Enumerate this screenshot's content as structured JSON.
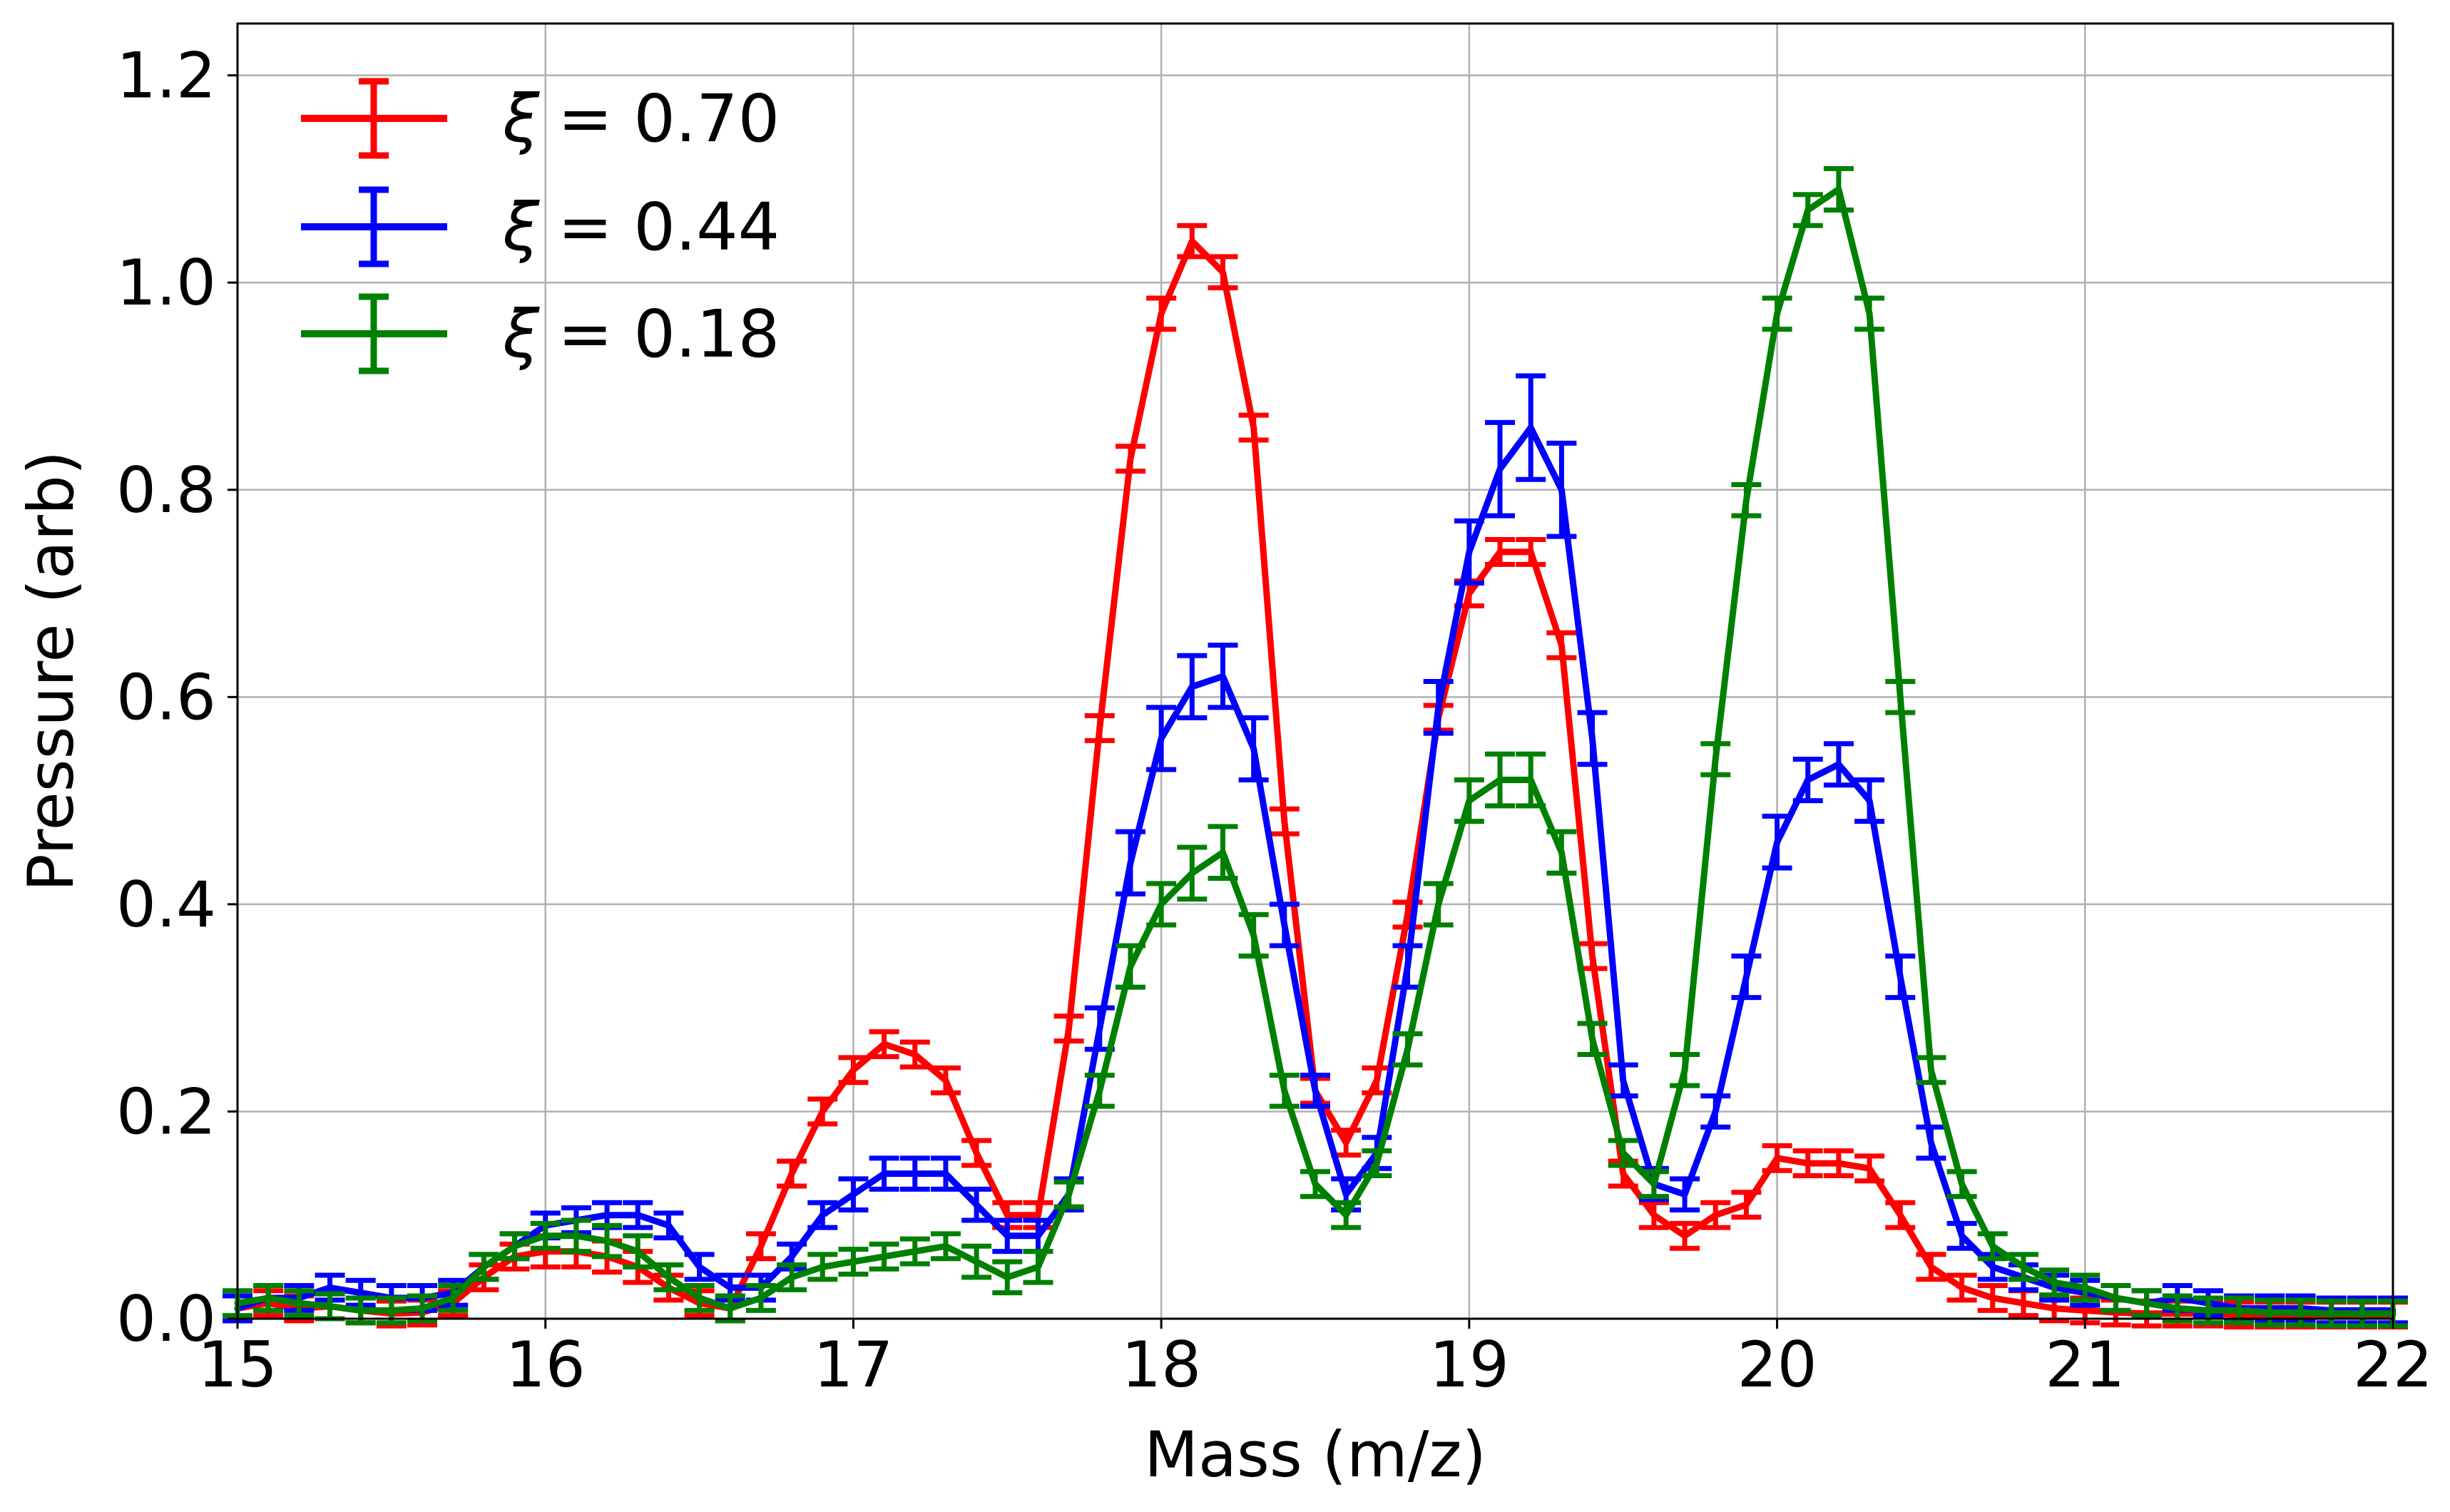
{
  "chart_data": {
    "type": "line",
    "title": "",
    "xlabel": "Mass (m/z)",
    "ylabel": "Pressure (arb)",
    "xlim": [
      15,
      22
    ],
    "ylim": [
      0,
      1.25
    ],
    "xticks": [
      15,
      16,
      17,
      18,
      19,
      20,
      21,
      22
    ],
    "xtick_labels": [
      "15",
      "16",
      "17",
      "18",
      "19",
      "20",
      "21",
      "22"
    ],
    "yticks": [
      0,
      0.2,
      0.4,
      0.6,
      0.8,
      1.0,
      1.2
    ],
    "ytick_labels": [
      "0.0",
      "0.2",
      "0.4",
      "0.6",
      "0.8",
      "1.0",
      "1.2"
    ],
    "grid": true,
    "legend_position": "top-left",
    "error_bars": true,
    "x": [
      15.0,
      15.1,
      15.2,
      15.3,
      15.4,
      15.5,
      15.6,
      15.7,
      15.8,
      15.9,
      16.0,
      16.1,
      16.2,
      16.3,
      16.4,
      16.5,
      16.6,
      16.7,
      16.8,
      16.9,
      17.0,
      17.1,
      17.2,
      17.3,
      17.4,
      17.5,
      17.6,
      17.7,
      17.8,
      17.9,
      18.0,
      18.1,
      18.2,
      18.3,
      18.4,
      18.5,
      18.6,
      18.7,
      18.8,
      18.9,
      19.0,
      19.1,
      19.2,
      19.3,
      19.4,
      19.5,
      19.6,
      19.7,
      19.8,
      19.9,
      20.0,
      20.1,
      20.2,
      20.3,
      20.4,
      20.5,
      20.6,
      20.7,
      20.8,
      20.9,
      21.0,
      21.1,
      21.2,
      21.3,
      21.4,
      21.5,
      21.6,
      21.7,
      21.8,
      21.9,
      22.0
    ],
    "series": [
      {
        "name": "ξ = 0.70",
        "legend_label": "= 0.70",
        "color": "#ff0000",
        "y": [
          0.01,
          0.015,
          0.01,
          0.012,
          0.008,
          0.005,
          0.006,
          0.015,
          0.04,
          0.06,
          0.065,
          0.065,
          0.06,
          0.05,
          0.03,
          0.015,
          0.01,
          0.07,
          0.14,
          0.2,
          0.24,
          0.265,
          0.255,
          0.23,
          0.16,
          0.1,
          0.1,
          0.28,
          0.57,
          0.83,
          0.97,
          1.04,
          1.01,
          0.86,
          0.48,
          0.22,
          0.17,
          0.23,
          0.39,
          0.58,
          0.7,
          0.74,
          0.74,
          0.65,
          0.35,
          0.14,
          0.1,
          0.08,
          0.1,
          0.11,
          0.155,
          0.15,
          0.15,
          0.145,
          0.1,
          0.05,
          0.03,
          0.02,
          0.015,
          0.01,
          0.008,
          0.006,
          0.005,
          0.005,
          0.005,
          0.004,
          0.004,
          0.004,
          0.004,
          0.004,
          0.004
        ],
        "err": [
          0.012,
          0.012,
          0.012,
          0.012,
          0.012,
          0.012,
          0.012,
          0.012,
          0.012,
          0.012,
          0.015,
          0.015,
          0.015,
          0.015,
          0.012,
          0.012,
          0.012,
          0.012,
          0.012,
          0.012,
          0.012,
          0.012,
          0.012,
          0.012,
          0.012,
          0.012,
          0.012,
          0.012,
          0.012,
          0.012,
          0.015,
          0.015,
          0.015,
          0.012,
          0.012,
          0.012,
          0.012,
          0.012,
          0.012,
          0.012,
          0.012,
          0.012,
          0.012,
          0.012,
          0.012,
          0.012,
          0.012,
          0.012,
          0.012,
          0.012,
          0.012,
          0.012,
          0.012,
          0.012,
          0.012,
          0.012,
          0.012,
          0.012,
          0.012,
          0.012,
          0.012,
          0.012,
          0.012,
          0.012,
          0.012,
          0.012,
          0.012,
          0.012,
          0.012,
          0.012,
          0.012
        ]
      },
      {
        "name": "ξ = 0.44",
        "legend_label": "= 0.44",
        "color": "#0000ff",
        "y": [
          0.01,
          0.02,
          0.02,
          0.03,
          0.025,
          0.02,
          0.02,
          0.025,
          0.05,
          0.07,
          0.09,
          0.095,
          0.1,
          0.1,
          0.09,
          0.05,
          0.03,
          0.03,
          0.06,
          0.1,
          0.12,
          0.14,
          0.14,
          0.14,
          0.11,
          0.08,
          0.08,
          0.12,
          0.28,
          0.44,
          0.56,
          0.61,
          0.62,
          0.55,
          0.38,
          0.22,
          0.12,
          0.16,
          0.34,
          0.59,
          0.74,
          0.82,
          0.86,
          0.8,
          0.56,
          0.23,
          0.13,
          0.12,
          0.2,
          0.33,
          0.46,
          0.52,
          0.535,
          0.5,
          0.33,
          0.17,
          0.08,
          0.05,
          0.04,
          0.03,
          0.025,
          0.02,
          0.015,
          0.02,
          0.015,
          0.01,
          0.01,
          0.01,
          0.008,
          0.008,
          0.008
        ],
        "err": [
          0.012,
          0.012,
          0.012,
          0.012,
          0.012,
          0.012,
          0.012,
          0.012,
          0.012,
          0.012,
          0.012,
          0.012,
          0.012,
          0.012,
          0.012,
          0.012,
          0.012,
          0.012,
          0.012,
          0.012,
          0.015,
          0.015,
          0.015,
          0.015,
          0.015,
          0.015,
          0.015,
          0.015,
          0.02,
          0.03,
          0.03,
          0.03,
          0.03,
          0.03,
          0.02,
          0.015,
          0.015,
          0.015,
          0.02,
          0.025,
          0.03,
          0.045,
          0.05,
          0.045,
          0.025,
          0.015,
          0.015,
          0.015,
          0.015,
          0.02,
          0.025,
          0.02,
          0.02,
          0.02,
          0.02,
          0.015,
          0.012,
          0.012,
          0.012,
          0.012,
          0.012,
          0.012,
          0.012,
          0.012,
          0.012,
          0.012,
          0.012,
          0.012,
          0.012,
          0.012,
          0.012
        ]
      },
      {
        "name": "ξ = 0.18",
        "legend_label": "= 0.18",
        "color": "#008000",
        "y": [
          0.015,
          0.02,
          0.015,
          0.012,
          0.008,
          0.008,
          0.01,
          0.02,
          0.05,
          0.07,
          0.08,
          0.08,
          0.075,
          0.065,
          0.04,
          0.02,
          0.01,
          0.02,
          0.04,
          0.05,
          0.055,
          0.06,
          0.065,
          0.07,
          0.055,
          0.04,
          0.05,
          0.12,
          0.22,
          0.34,
          0.4,
          0.43,
          0.45,
          0.37,
          0.22,
          0.13,
          0.1,
          0.15,
          0.26,
          0.4,
          0.5,
          0.52,
          0.52,
          0.45,
          0.27,
          0.16,
          0.13,
          0.24,
          0.54,
          0.79,
          0.97,
          1.07,
          1.09,
          0.97,
          0.6,
          0.24,
          0.13,
          0.07,
          0.05,
          0.035,
          0.03,
          0.02,
          0.015,
          0.01,
          0.008,
          0.008,
          0.006,
          0.006,
          0.005,
          0.005,
          0.005
        ],
        "err": [
          0.012,
          0.012,
          0.012,
          0.012,
          0.012,
          0.012,
          0.012,
          0.012,
          0.012,
          0.012,
          0.012,
          0.015,
          0.015,
          0.015,
          0.012,
          0.012,
          0.012,
          0.012,
          0.012,
          0.012,
          0.012,
          0.012,
          0.012,
          0.012,
          0.015,
          0.015,
          0.015,
          0.012,
          0.015,
          0.02,
          0.02,
          0.025,
          0.025,
          0.02,
          0.015,
          0.012,
          0.012,
          0.012,
          0.015,
          0.02,
          0.02,
          0.025,
          0.025,
          0.02,
          0.015,
          0.012,
          0.012,
          0.015,
          0.015,
          0.015,
          0.015,
          0.015,
          0.02,
          0.015,
          0.015,
          0.012,
          0.012,
          0.012,
          0.012,
          0.012,
          0.012,
          0.012,
          0.012,
          0.012,
          0.012,
          0.012,
          0.012,
          0.012,
          0.012,
          0.012,
          0.012
        ]
      }
    ]
  }
}
